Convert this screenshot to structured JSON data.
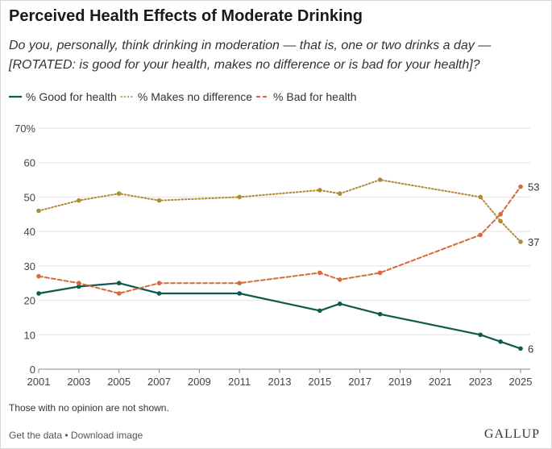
{
  "title": "Perceived Health Effects of Moderate Drinking",
  "subtitle": "Do you, personally, think drinking in moderation — that is, one or two drinks a day — [ROTATED: is good for your health, makes no difference or is bad for your health]?",
  "note": "Those with no opinion are not shown.",
  "footer": {
    "get_data": "Get the data",
    "separator": " • ",
    "download": "Download image"
  },
  "brand": "GALLUP",
  "colors": {
    "good": "#0e5a4e",
    "no_difference": "#b08a34",
    "bad": "#d66a3a",
    "grid": "#e3e3e3",
    "axis": "#888888",
    "tick_text": "#444444"
  },
  "chart_data": {
    "type": "line",
    "y_unit_label": "70%",
    "ylim": [
      0,
      70
    ],
    "y_ticks": [
      0,
      10,
      20,
      30,
      40,
      50,
      60,
      70
    ],
    "xlim": [
      2001,
      2025
    ],
    "x_ticks": [
      2001,
      2003,
      2005,
      2007,
      2009,
      2011,
      2013,
      2015,
      2017,
      2019,
      2021,
      2023,
      2025
    ],
    "grid": true,
    "legend_position": "top-left",
    "series": [
      {
        "key": "good",
        "name": "% Good for health",
        "style": "solid",
        "x": [
          2001,
          2003,
          2005,
          2007,
          2011,
          2015,
          2016,
          2018,
          2023,
          2024,
          2025
        ],
        "y": [
          22,
          24,
          25,
          22,
          22,
          17,
          19,
          16,
          10,
          8,
          6
        ],
        "end_label": "6"
      },
      {
        "key": "no_difference",
        "name": "% Makes no difference",
        "style": "dotted",
        "x": [
          2001,
          2003,
          2005,
          2007,
          2011,
          2015,
          2016,
          2018,
          2023,
          2024,
          2025
        ],
        "y": [
          46,
          49,
          51,
          49,
          50,
          52,
          51,
          55,
          50,
          43,
          37
        ],
        "end_label": "37"
      },
      {
        "key": "bad",
        "name": "% Bad for health",
        "style": "dashed",
        "x": [
          2001,
          2003,
          2005,
          2007,
          2011,
          2015,
          2016,
          2018,
          2023,
          2024,
          2025
        ],
        "y": [
          27,
          25,
          22,
          25,
          25,
          28,
          26,
          28,
          39,
          45,
          53
        ],
        "end_label": "53"
      }
    ]
  }
}
